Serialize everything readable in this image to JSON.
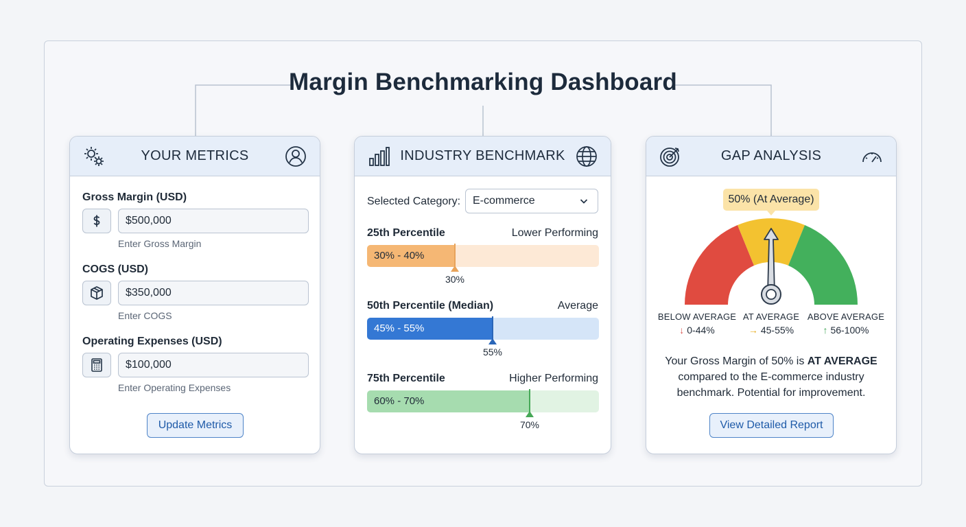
{
  "title": "Margin Benchmarking Dashboard",
  "metrics": {
    "title": "YOUR METRICS",
    "fields": [
      {
        "label": "Gross Margin (USD)",
        "value": "$500,000",
        "help": "Enter Gross Margin",
        "icon": "dollar-icon"
      },
      {
        "label": "COGS (USD)",
        "value": "$350,000",
        "help": "Enter COGS",
        "icon": "box-icon"
      },
      {
        "label": "Operating Expenses (USD)",
        "value": "$100,000",
        "help": "Enter Operating Expenses",
        "icon": "calculator-icon"
      }
    ],
    "button": "Update Metrics"
  },
  "benchmark": {
    "title": "INDUSTRY BENCHMARK",
    "category_label": "Selected Category:",
    "category_value": "E-commerce",
    "percentiles": [
      {
        "name": "25th Percentile",
        "performance": "Lower Performing",
        "range": "30% - 40%",
        "marker": "30%",
        "marker_fraction": 0.38,
        "color": "#f5b774",
        "track": "#fde9d6",
        "marker_color": "#e8a35a"
      },
      {
        "name": "50th Percentile (Median)",
        "performance": "Average",
        "range": "45% - 55%",
        "marker": "55%",
        "marker_fraction": 0.54,
        "color": "#3478d4",
        "track": "#d5e5f8",
        "marker_color": "#2a66b8"
      },
      {
        "name": "75th Percentile",
        "performance": "Higher Performing",
        "range": "60% - 70%",
        "marker": "70%",
        "marker_fraction": 0.7,
        "color": "#a6dcaf",
        "track": "#e1f3e3",
        "marker_color": "#46a857"
      }
    ]
  },
  "gap": {
    "title": "GAP ANALYSIS",
    "badge": "50% (At Average)",
    "legend": [
      {
        "title": "BELOW AVERAGE",
        "arrow": "↓",
        "range": "0-44%",
        "color": "#d9534f"
      },
      {
        "title": "AT AVERAGE",
        "arrow": "→",
        "range": "45-55%",
        "color": "#e6ac1e"
      },
      {
        "title": "ABOVE AVERAGE",
        "arrow": "↑",
        "range": "56-100%",
        "color": "#3ea455"
      }
    ],
    "summary_pre": "Your Gross Margin of 50% is ",
    "summary_bold": "AT AVERAGE",
    "summary_post": " compared to the E-commerce industry benchmark. Potential for improvement.",
    "button": "View Detailed Report",
    "gauge_value_percent": 50
  },
  "colors": {
    "accent": "#1e5aa8",
    "gauge_red": "#e04b40",
    "gauge_yellow": "#f3c230",
    "gauge_green": "#43b05c"
  }
}
